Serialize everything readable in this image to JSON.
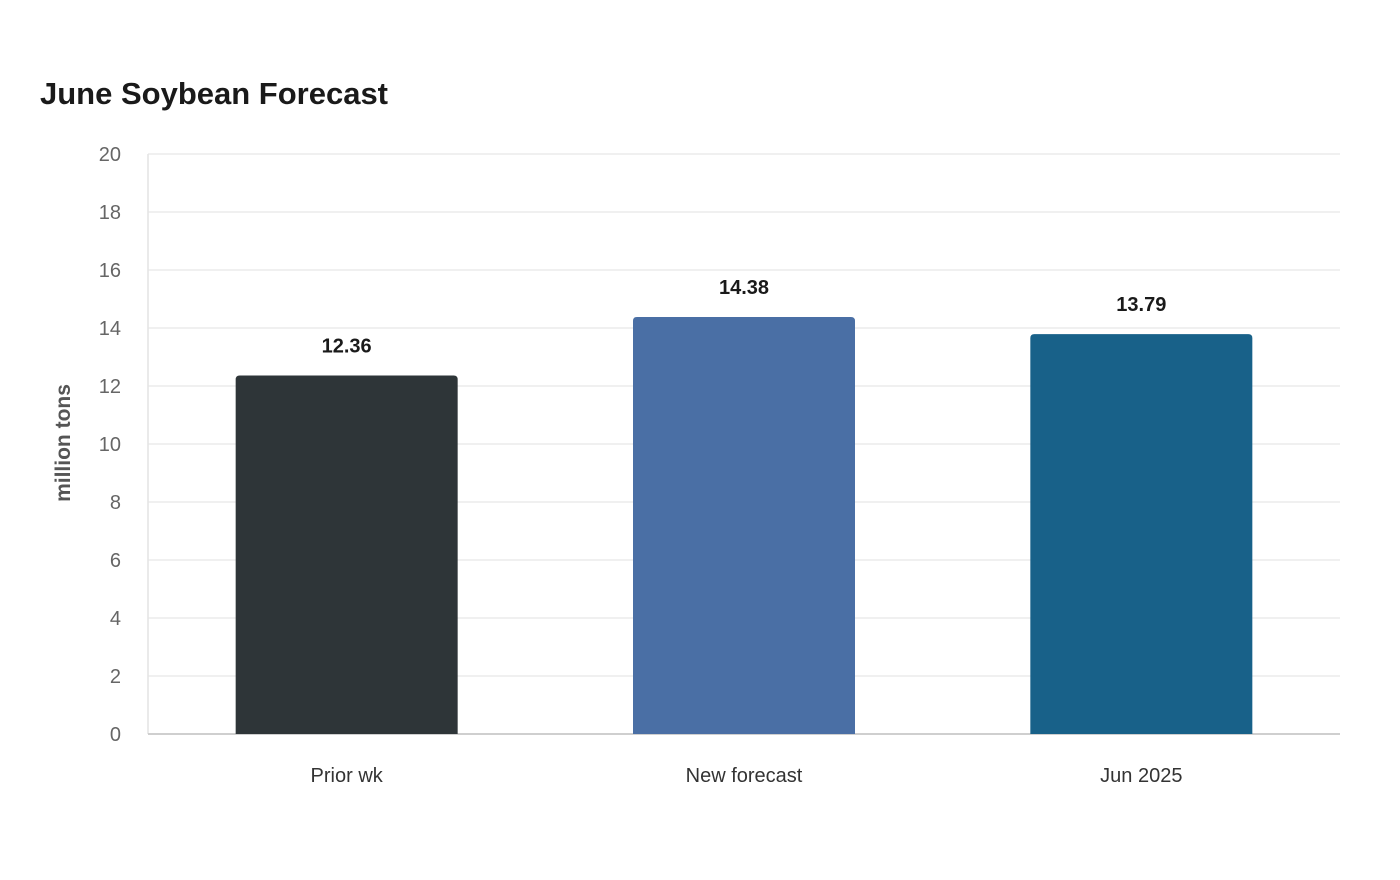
{
  "chart_data": {
    "type": "bar",
    "title": "June Soybean Forecast",
    "xlabel": "",
    "ylabel": "million tons",
    "categories": [
      "Prior wk",
      "New forecast",
      "Jun 2025"
    ],
    "values": [
      12.36,
      14.38,
      13.79
    ],
    "value_labels": [
      "12.36",
      "14.38",
      "13.79"
    ],
    "colors": [
      "#2e3538",
      "#4a6fa5",
      "#186189"
    ],
    "ylim": [
      0,
      20
    ],
    "yticks": [
      0,
      2,
      4,
      6,
      8,
      10,
      12,
      14,
      16,
      18,
      20
    ],
    "grid": true,
    "legend": "none"
  }
}
